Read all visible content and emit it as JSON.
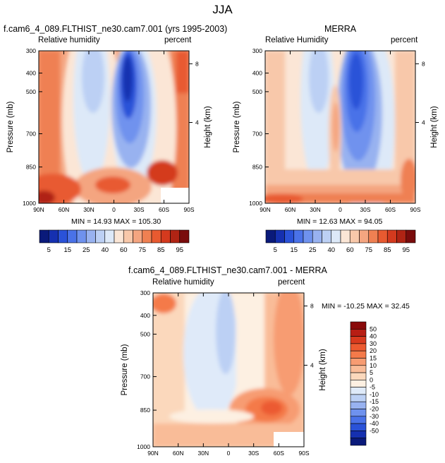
{
  "title": "JJA",
  "chart_data": [
    {
      "type": "contour",
      "title": "f.cam6_4_089.FLTHIST_ne30.cam7.001 (yrs 1995-2003)",
      "left_label": "Relative humidity",
      "right_label": "percent",
      "ylabel": "Pressure (mb)",
      "y2label": "Height (km)",
      "x_ticks": [
        "90N",
        "60N",
        "30N",
        "0",
        "30S",
        "60S",
        "90S"
      ],
      "y_ticks": [
        "300",
        "400",
        "500",
        "700",
        "850",
        "1000"
      ],
      "y2_ticks": [
        "8",
        "4"
      ],
      "stats": "MIN = 14.93   MAX = 105.30"
    },
    {
      "type": "contour",
      "title": "MERRA",
      "left_label": "Relative Humidity",
      "right_label": "percent",
      "ylabel": "Pressure (mb)",
      "y2label": "Height (km)",
      "x_ticks": [
        "90N",
        "60N",
        "30N",
        "0",
        "30S",
        "60S",
        "90S"
      ],
      "y_ticks": [
        "300",
        "400",
        "500",
        "700",
        "850",
        "1000"
      ],
      "y2_ticks": [
        "8",
        "4"
      ],
      "stats": "MIN = 12.63   MAX = 94.05"
    },
    {
      "type": "contour",
      "title": "f.cam6_4_089.FLTHIST_ne30.cam7.001 - MERRA",
      "left_label": "Relative humidity",
      "right_label": "percent",
      "ylabel": "Pressure (mb)",
      "y2label": "Height (km)",
      "x_ticks": [
        "90N",
        "60N",
        "30N",
        "0",
        "30S",
        "60S",
        "90S"
      ],
      "y_ticks": [
        "300",
        "400",
        "500",
        "700",
        "850",
        "1000"
      ],
      "y2_ticks": [
        "8",
        "4"
      ],
      "stats": "MIN = -10.25  MAX = 32.45"
    }
  ],
  "colorbar_top": {
    "labels": [
      "5",
      "15",
      "25",
      "40",
      "60",
      "75",
      "85",
      "95"
    ],
    "colors": [
      "#0a1a7a",
      "#1530b0",
      "#2a52d8",
      "#4a72e8",
      "#6f92ee",
      "#98b2f0",
      "#bcd0f4",
      "#dde9f8",
      "#fbe6d6",
      "#f8c8aa",
      "#f4a580",
      "#ef8052",
      "#e85a30",
      "#d43a1e",
      "#b02414",
      "#7a0c0c"
    ]
  },
  "colorbar_diff": {
    "labels": [
      "50",
      "40",
      "30",
      "20",
      "15",
      "10",
      "5",
      "0",
      "-5",
      "-10",
      "-15",
      "-20",
      "-30",
      "-40",
      "-50"
    ],
    "colors": [
      "#8a0a0a",
      "#b81e14",
      "#d83a1e",
      "#ec5a30",
      "#f47a4a",
      "#f79c72",
      "#f9bc98",
      "#fbd8bc",
      "#fdf0e2",
      "#dfeaf9",
      "#bcd0f4",
      "#98b2f0",
      "#6f92ee",
      "#4a72e8",
      "#2a52d8",
      "#1530b0",
      "#0a1a7a"
    ]
  }
}
